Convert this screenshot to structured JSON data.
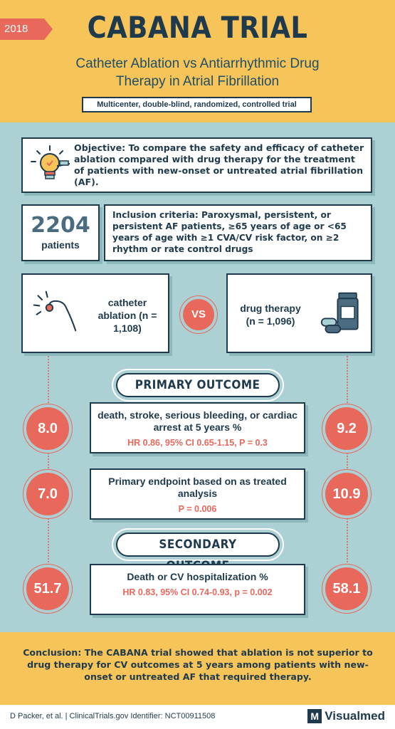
{
  "header": {
    "year": "2018",
    "title": "CABANA TRIAL",
    "subtitle": "Catheter Ablation vs Antiarrhythmic Drug Therapy in Atrial Fibrillation",
    "design": "Multicenter, double-blind, randomized, controlled trial"
  },
  "objective": {
    "text": "Objective: To compare the safety and efficacy of catheter ablation compared with drug therapy for the treatment of patients with new-onset or untreated atrial fibrillation (AF).",
    "icon": "lightbulb-icon"
  },
  "enrollment": {
    "count": "2204",
    "label": "patients",
    "inclusion": "Inclusion criteria: Paroxysmal, persistent, or persistent AF patients, ≥65 years of age or <65 years of age with ≥1 CVA/CV risk factor, on ≥2 rhythm or rate control drugs"
  },
  "arms": {
    "left": {
      "label": "catheter ablation (n = 1,108)",
      "icon": "catheter-icon"
    },
    "vs": "VS",
    "right": {
      "label": "drug therapy (n = 1,096)",
      "icon": "pill-bottle-icon"
    }
  },
  "primary": {
    "heading": "PRIMARY OUTCOME",
    "outcomes": [
      {
        "ablation": "8.0",
        "drug": "9.2",
        "text": "death, stroke, serious bleeding, or cardiac arrest at 5 years %",
        "stat": "HR 0.86, 95% CI 0.65-1.15, P = 0.3"
      },
      {
        "ablation": "7.0",
        "drug": "10.9",
        "text": "Primary endpoint based on as treated analysis",
        "stat": "P = 0.006"
      }
    ]
  },
  "secondary": {
    "heading": "SECONDARY OUTCOME",
    "outcomes": [
      {
        "ablation": "51.7",
        "drug": "58.1",
        "text": "Death or CV hospitalization %",
        "stat": "HR 0.83, 95% CI 0.74-0.93, p = 0.002"
      }
    ]
  },
  "conclusion": "Conclusion: The CABANA trial showed that ablation is not superior to drug therapy for CV outcomes at 5 years among patients with new-onset or untreated AF that required therapy.",
  "footer": {
    "citation": "D Packer, et al. | ClinicalTrials.gov Identifier: NCT00911508",
    "brand_mark": "M",
    "brand_name": "Visualmed"
  },
  "colors": {
    "accent": "#e8685c",
    "navy": "#1e3a4c",
    "teal_bg": "#acd1d4",
    "yellow": "#f7c45a"
  }
}
